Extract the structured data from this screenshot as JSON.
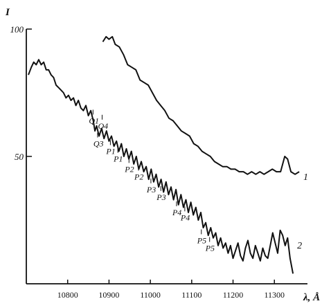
{
  "chart_data": {
    "type": "line",
    "ylabel": "I",
    "xlabel": "λ, Å",
    "xlim": [
      10700,
      11380
    ],
    "ylim": [
      0,
      100
    ],
    "y_ticks": [
      {
        "v": 100,
        "label": "100"
      },
      {
        "v": 50,
        "label": "50"
      }
    ],
    "x_ticks": [
      {
        "v": 10800,
        "label": "10800"
      },
      {
        "v": 10900,
        "label": "10900"
      },
      {
        "v": 11000,
        "label": "11000"
      },
      {
        "v": 11100,
        "label": "11100"
      },
      {
        "v": 11200,
        "label": "11200"
      },
      {
        "v": 11300,
        "label": "11300"
      }
    ],
    "series": [
      {
        "name": "1",
        "color": "#111111",
        "points": [
          [
            10885,
            95
          ],
          [
            10893,
            97
          ],
          [
            10900,
            96
          ],
          [
            10908,
            97
          ],
          [
            10915,
            94
          ],
          [
            10925,
            93
          ],
          [
            10935,
            90
          ],
          [
            10945,
            86
          ],
          [
            10955,
            85
          ],
          [
            10965,
            84
          ],
          [
            10975,
            80
          ],
          [
            10985,
            79
          ],
          [
            10995,
            78
          ],
          [
            11005,
            75
          ],
          [
            11015,
            72
          ],
          [
            11025,
            70
          ],
          [
            11035,
            68
          ],
          [
            11045,
            65
          ],
          [
            11055,
            64
          ],
          [
            11065,
            62
          ],
          [
            11075,
            60
          ],
          [
            11085,
            59
          ],
          [
            11095,
            58
          ],
          [
            11105,
            55
          ],
          [
            11115,
            54
          ],
          [
            11125,
            52
          ],
          [
            11135,
            51
          ],
          [
            11145,
            50
          ],
          [
            11155,
            48
          ],
          [
            11165,
            47
          ],
          [
            11175,
            46
          ],
          [
            11185,
            46
          ],
          [
            11195,
            45
          ],
          [
            11205,
            45
          ],
          [
            11215,
            44
          ],
          [
            11225,
            44
          ],
          [
            11235,
            43
          ],
          [
            11245,
            44
          ],
          [
            11255,
            43
          ],
          [
            11265,
            44
          ],
          [
            11275,
            43
          ],
          [
            11285,
            44
          ],
          [
            11295,
            45
          ],
          [
            11305,
            44
          ],
          [
            11315,
            44
          ],
          [
            11325,
            50
          ],
          [
            11332,
            49
          ],
          [
            11340,
            44
          ],
          [
            11350,
            43
          ],
          [
            11360,
            44
          ]
        ]
      },
      {
        "name": "2",
        "color": "#111111",
        "points": [
          [
            10705,
            82
          ],
          [
            10712,
            85
          ],
          [
            10718,
            87
          ],
          [
            10724,
            86
          ],
          [
            10730,
            88
          ],
          [
            10736,
            86
          ],
          [
            10742,
            87
          ],
          [
            10748,
            84
          ],
          [
            10754,
            84
          ],
          [
            10760,
            82
          ],
          [
            10766,
            81
          ],
          [
            10772,
            78
          ],
          [
            10778,
            77
          ],
          [
            10784,
            76
          ],
          [
            10790,
            75
          ],
          [
            10796,
            73
          ],
          [
            10802,
            74
          ],
          [
            10808,
            72
          ],
          [
            10814,
            73
          ],
          [
            10820,
            70
          ],
          [
            10826,
            72
          ],
          [
            10832,
            69
          ],
          [
            10838,
            68
          ],
          [
            10844,
            70
          ],
          [
            10850,
            66
          ],
          [
            10856,
            68
          ],
          [
            10862,
            64
          ],
          [
            10866,
            60
          ],
          [
            10870,
            62
          ],
          [
            10876,
            58
          ],
          [
            10882,
            61
          ],
          [
            10888,
            57
          ],
          [
            10894,
            60
          ],
          [
            10900,
            56
          ],
          [
            10906,
            58
          ],
          [
            10912,
            54
          ],
          [
            10918,
            56
          ],
          [
            10924,
            52
          ],
          [
            10930,
            55
          ],
          [
            10936,
            50
          ],
          [
            10942,
            53
          ],
          [
            10948,
            49
          ],
          [
            10954,
            52
          ],
          [
            10960,
            47
          ],
          [
            10966,
            50
          ],
          [
            10972,
            45
          ],
          [
            10978,
            48
          ],
          [
            10984,
            44
          ],
          [
            10990,
            46
          ],
          [
            10996,
            41
          ],
          [
            11002,
            45
          ],
          [
            11008,
            40
          ],
          [
            11014,
            43
          ],
          [
            11020,
            38
          ],
          [
            11026,
            41
          ],
          [
            11032,
            36
          ],
          [
            11038,
            40
          ],
          [
            11044,
            35
          ],
          [
            11050,
            38
          ],
          [
            11056,
            33
          ],
          [
            11062,
            37
          ],
          [
            11068,
            31
          ],
          [
            11074,
            35
          ],
          [
            11080,
            30
          ],
          [
            11086,
            33
          ],
          [
            11092,
            28
          ],
          [
            11098,
            32
          ],
          [
            11104,
            27
          ],
          [
            11110,
            30
          ],
          [
            11116,
            25
          ],
          [
            11122,
            28
          ],
          [
            11128,
            22
          ],
          [
            11134,
            24
          ],
          [
            11140,
            19
          ],
          [
            11146,
            22
          ],
          [
            11152,
            18
          ],
          [
            11158,
            20
          ],
          [
            11164,
            15
          ],
          [
            11170,
            18
          ],
          [
            11176,
            14
          ],
          [
            11182,
            16
          ],
          [
            11188,
            12
          ],
          [
            11194,
            15
          ],
          [
            11200,
            10
          ],
          [
            11206,
            13
          ],
          [
            11212,
            16
          ],
          [
            11218,
            11
          ],
          [
            11224,
            9
          ],
          [
            11230,
            14
          ],
          [
            11236,
            17
          ],
          [
            11242,
            12
          ],
          [
            11248,
            10
          ],
          [
            11254,
            15
          ],
          [
            11260,
            12
          ],
          [
            11266,
            9
          ],
          [
            11272,
            14
          ],
          [
            11278,
            11
          ],
          [
            11284,
            10
          ],
          [
            11290,
            15
          ],
          [
            11296,
            20
          ],
          [
            11302,
            16
          ],
          [
            11308,
            12
          ],
          [
            11314,
            21
          ],
          [
            11320,
            19
          ],
          [
            11326,
            15
          ],
          [
            11332,
            18
          ],
          [
            11338,
            10
          ],
          [
            11345,
            4
          ]
        ]
      }
    ],
    "annotations": [
      {
        "text": "Q1",
        "x": 10858,
        "y": 64
      },
      {
        "text": "Q4",
        "x": 10880,
        "y": 62
      },
      {
        "text": "Q3",
        "x": 10869,
        "y": 55
      },
      {
        "text": "P1",
        "x": 10900,
        "y": 52
      },
      {
        "text": "P1",
        "x": 10918,
        "y": 49
      },
      {
        "text": "P2",
        "x": 10945,
        "y": 45
      },
      {
        "text": "P2",
        "x": 10968,
        "y": 42
      },
      {
        "text": "P3",
        "x": 10998,
        "y": 37
      },
      {
        "text": "P3",
        "x": 11022,
        "y": 34
      },
      {
        "text": "P4",
        "x": 11060,
        "y": 28
      },
      {
        "text": "P4",
        "x": 11080,
        "y": 26
      },
      {
        "text": "P5",
        "x": 11120,
        "y": 17
      },
      {
        "text": "P5",
        "x": 11140,
        "y": 14
      }
    ],
    "series_labels": [
      {
        "text": "1",
        "series": "1"
      },
      {
        "text": "2",
        "series": "2"
      }
    ]
  }
}
